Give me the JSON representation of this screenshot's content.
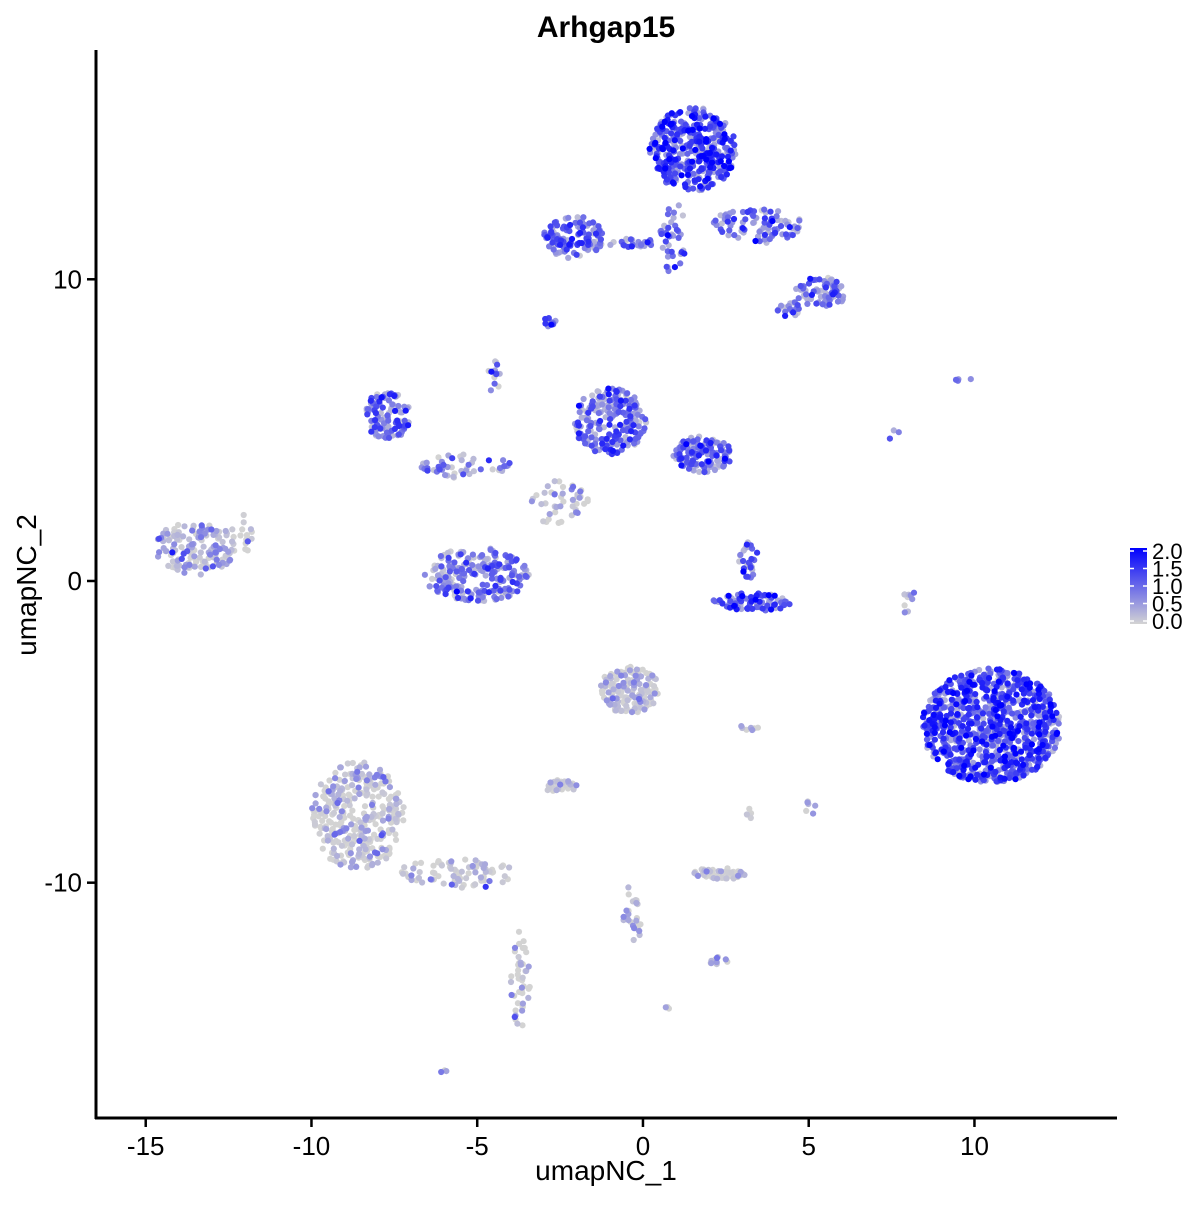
{
  "chart_data": {
    "type": "scatter",
    "title": "Arhgap15",
    "xlabel": "umapNC_1",
    "ylabel": "umapNC_2",
    "xlim": [
      -16.5,
      14.3
    ],
    "ylim": [
      -17.8,
      17.6
    ],
    "x_ticks": [
      -15,
      -10,
      -5,
      0,
      5,
      10
    ],
    "x_tick_labels": [
      "-15",
      "-10",
      "-5",
      "0",
      "5",
      "10"
    ],
    "y_ticks": [
      -10,
      0,
      10
    ],
    "y_tick_labels": [
      "-10",
      "0",
      "10"
    ],
    "grid": false,
    "legend": {
      "position": "right",
      "type": "colorbar",
      "range": [
        0.0,
        2.0
      ],
      "ticks": [
        0.0,
        0.5,
        1.0,
        1.5,
        2.0
      ],
      "tick_labels": [
        "0.0",
        "0.5",
        "1.0",
        "1.5",
        "2.0"
      ],
      "low_color": "#d3d3d3",
      "high_color": "#0000ff"
    },
    "clusters": [
      {
        "cx": 1.5,
        "cy": 14.3,
        "rx": 1.3,
        "ry": 1.4,
        "n": 420,
        "expr": 1.35
      },
      {
        "cx": 0.9,
        "cy": 11.4,
        "rx": 0.4,
        "ry": 1.2,
        "n": 40,
        "expr": 1.0
      },
      {
        "cx": 3.5,
        "cy": 11.8,
        "rx": 1.4,
        "ry": 0.6,
        "n": 90,
        "expr": 1.05
      },
      {
        "cx": 5.4,
        "cy": 9.6,
        "rx": 0.8,
        "ry": 0.5,
        "n": 70,
        "expr": 0.95
      },
      {
        "cx": 4.4,
        "cy": 9.0,
        "rx": 0.4,
        "ry": 0.3,
        "n": 20,
        "expr": 0.9
      },
      {
        "cx": -2.1,
        "cy": 11.4,
        "rx": 0.9,
        "ry": 0.7,
        "n": 120,
        "expr": 1.1
      },
      {
        "cx": -0.3,
        "cy": 11.2,
        "rx": 0.8,
        "ry": 0.15,
        "n": 25,
        "expr": 0.85
      },
      {
        "cx": -2.8,
        "cy": 8.6,
        "rx": 0.2,
        "ry": 0.2,
        "n": 10,
        "expr": 1.2
      },
      {
        "cx": -1.0,
        "cy": 5.3,
        "rx": 1.1,
        "ry": 1.1,
        "n": 220,
        "expr": 1.05
      },
      {
        "cx": 1.8,
        "cy": 4.2,
        "rx": 0.9,
        "ry": 0.6,
        "n": 130,
        "expr": 1.0
      },
      {
        "cx": -7.7,
        "cy": 5.5,
        "rx": 0.7,
        "ry": 0.8,
        "n": 110,
        "expr": 0.9
      },
      {
        "cx": -5.3,
        "cy": 3.8,
        "rx": 1.4,
        "ry": 0.4,
        "n": 50,
        "expr": 0.6
      },
      {
        "cx": -4.5,
        "cy": 6.8,
        "rx": 0.2,
        "ry": 0.6,
        "n": 15,
        "expr": 0.8
      },
      {
        "cx": -2.5,
        "cy": 2.6,
        "rx": 0.9,
        "ry": 0.8,
        "n": 45,
        "expr": 0.15
      },
      {
        "cx": -5.0,
        "cy": 0.2,
        "rx": 1.6,
        "ry": 0.9,
        "n": 230,
        "expr": 0.85
      },
      {
        "cx": -13.5,
        "cy": 1.1,
        "rx": 1.2,
        "ry": 0.9,
        "n": 150,
        "expr": 0.35
      },
      {
        "cx": -12.0,
        "cy": 1.6,
        "rx": 0.4,
        "ry": 0.6,
        "n": 15,
        "expr": 0.0
      },
      {
        "cx": 3.2,
        "cy": 0.7,
        "rx": 0.3,
        "ry": 0.6,
        "n": 30,
        "expr": 0.9
      },
      {
        "cx": 3.3,
        "cy": -0.7,
        "rx": 1.2,
        "ry": 0.3,
        "n": 80,
        "expr": 1.25
      },
      {
        "cx": 10.5,
        "cy": -4.8,
        "rx": 2.1,
        "ry": 1.9,
        "n": 950,
        "expr": 1.3
      },
      {
        "cx": 8.0,
        "cy": -0.5,
        "rx": 0.2,
        "ry": 1.0,
        "n": 10,
        "expr": 0.3
      },
      {
        "cx": -0.4,
        "cy": -3.6,
        "rx": 0.9,
        "ry": 0.8,
        "n": 150,
        "expr": 0.08
      },
      {
        "cx": -8.6,
        "cy": -7.8,
        "rx": 1.4,
        "ry": 1.8,
        "n": 330,
        "expr": 0.1
      },
      {
        "cx": -5.6,
        "cy": -9.7,
        "rx": 1.8,
        "ry": 0.5,
        "n": 80,
        "expr": 0.02
      },
      {
        "cx": -3.7,
        "cy": -13.2,
        "rx": 0.3,
        "ry": 1.6,
        "n": 45,
        "expr": 0.0
      },
      {
        "cx": -2.5,
        "cy": -6.8,
        "rx": 0.5,
        "ry": 0.2,
        "n": 30,
        "expr": 0.02
      },
      {
        "cx": 2.3,
        "cy": -9.7,
        "rx": 0.8,
        "ry": 0.2,
        "n": 55,
        "expr": 0.0
      },
      {
        "cx": -0.3,
        "cy": -11.0,
        "rx": 0.3,
        "ry": 1.0,
        "n": 25,
        "expr": 0.0
      },
      {
        "cx": 2.3,
        "cy": -12.6,
        "rx": 0.3,
        "ry": 0.2,
        "n": 10,
        "expr": 0.4
      },
      {
        "cx": 3.1,
        "cy": -4.9,
        "rx": 0.4,
        "ry": 0.1,
        "n": 8,
        "expr": 0.3
      },
      {
        "cx": 5.0,
        "cy": -7.5,
        "rx": 0.2,
        "ry": 0.3,
        "n": 6,
        "expr": 0.0
      },
      {
        "cx": 3.2,
        "cy": -7.6,
        "rx": 0.1,
        "ry": 0.4,
        "n": 5,
        "expr": 0.0
      },
      {
        "cx": 0.7,
        "cy": -14.2,
        "rx": 0.1,
        "ry": 0.1,
        "n": 3,
        "expr": 0.0
      },
      {
        "cx": -6.0,
        "cy": -16.3,
        "rx": 0.1,
        "ry": 0.1,
        "n": 3,
        "expr": 0.0
      },
      {
        "cx": 9.6,
        "cy": 6.7,
        "rx": 0.3,
        "ry": 0.1,
        "n": 4,
        "expr": 1.0
      },
      {
        "cx": 7.6,
        "cy": 4.7,
        "rx": 0.2,
        "ry": 0.3,
        "n": 3,
        "expr": 1.0
      }
    ]
  }
}
